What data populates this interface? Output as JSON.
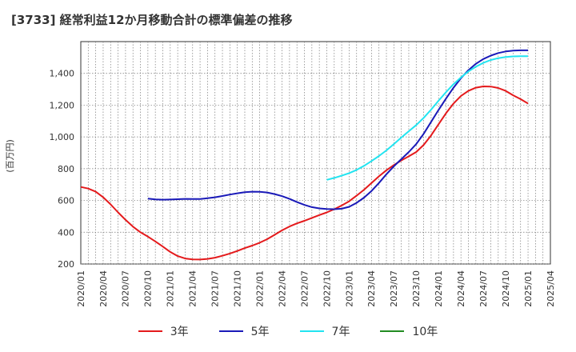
{
  "chart_data": {
    "type": "line",
    "title": "[3733]  経常利益12か月移動合計の標準偏差の推移",
    "ylabel": "(百万円)",
    "xlabel": "",
    "ylim": [
      200,
      1600
    ],
    "yticks": [
      "200",
      "400",
      "600",
      "800",
      "1,000",
      "1,200",
      "1,400"
    ],
    "ytick_values": [
      200,
      400,
      600,
      800,
      1000,
      1200,
      1400
    ],
    "x_start": "2020/01",
    "x_end": "2025/04",
    "xticks": [
      "2020/01",
      "2020/04",
      "2020/07",
      "2020/10",
      "2021/01",
      "2021/04",
      "2021/07",
      "2021/10",
      "2022/01",
      "2022/04",
      "2022/07",
      "2022/10",
      "2023/01",
      "2023/04",
      "2023/07",
      "2023/10",
      "2024/01",
      "2024/04",
      "2024/07",
      "2024/10",
      "2025/01",
      "2025/04"
    ],
    "grid": true,
    "legend_position": "bottom",
    "series": [
      {
        "name": "3年",
        "color": "#e41a1c",
        "points": [
          [
            "2020/01",
            685
          ],
          [
            "2020/02",
            675
          ],
          [
            "2020/03",
            655
          ],
          [
            "2020/04",
            620
          ],
          [
            "2020/05",
            575
          ],
          [
            "2020/06",
            525
          ],
          [
            "2020/07",
            478
          ],
          [
            "2020/08",
            435
          ],
          [
            "2020/09",
            400
          ],
          [
            "2020/10",
            372
          ],
          [
            "2020/11",
            342
          ],
          [
            "2020/12",
            310
          ],
          [
            "2021/01",
            276
          ],
          [
            "2021/02",
            250
          ],
          [
            "2021/03",
            235
          ],
          [
            "2021/04",
            229
          ],
          [
            "2021/05",
            228
          ],
          [
            "2021/06",
            232
          ],
          [
            "2021/07",
            240
          ],
          [
            "2021/08",
            252
          ],
          [
            "2021/09",
            266
          ],
          [
            "2021/10",
            282
          ],
          [
            "2021/11",
            300
          ],
          [
            "2021/12",
            316
          ],
          [
            "2022/01",
            334
          ],
          [
            "2022/02",
            356
          ],
          [
            "2022/03",
            384
          ],
          [
            "2022/04",
            412
          ],
          [
            "2022/05",
            436
          ],
          [
            "2022/06",
            456
          ],
          [
            "2022/07",
            472
          ],
          [
            "2022/08",
            490
          ],
          [
            "2022/09",
            508
          ],
          [
            "2022/10",
            525
          ],
          [
            "2022/11",
            545
          ],
          [
            "2022/12",
            568
          ],
          [
            "2023/01",
            595
          ],
          [
            "2023/02",
            630
          ],
          [
            "2023/03",
            668
          ],
          [
            "2023/04",
            710
          ],
          [
            "2023/05",
            752
          ],
          [
            "2023/06",
            790
          ],
          [
            "2023/07",
            823
          ],
          [
            "2023/08",
            852
          ],
          [
            "2023/09",
            878
          ],
          [
            "2023/10",
            905
          ],
          [
            "2023/11",
            950
          ],
          [
            "2023/12",
            1010
          ],
          [
            "2024/01",
            1080
          ],
          [
            "2024/02",
            1150
          ],
          [
            "2024/03",
            1210
          ],
          [
            "2024/04",
            1258
          ],
          [
            "2024/05",
            1290
          ],
          [
            "2024/06",
            1310
          ],
          [
            "2024/07",
            1318
          ],
          [
            "2024/08",
            1317
          ],
          [
            "2024/09",
            1308
          ],
          [
            "2024/10",
            1290
          ],
          [
            "2024/11",
            1262
          ],
          [
            "2024/12",
            1238
          ],
          [
            "2025/01",
            1210
          ]
        ]
      },
      {
        "name": "5年",
        "color": "#1a1ab8",
        "points": [
          [
            "2020/10",
            612
          ],
          [
            "2020/11",
            607
          ],
          [
            "2020/12",
            605
          ],
          [
            "2021/01",
            606
          ],
          [
            "2021/02",
            608
          ],
          [
            "2021/03",
            610
          ],
          [
            "2021/04",
            609
          ],
          [
            "2021/05",
            609
          ],
          [
            "2021/06",
            614
          ],
          [
            "2021/07",
            620
          ],
          [
            "2021/08",
            628
          ],
          [
            "2021/09",
            637
          ],
          [
            "2021/10",
            645
          ],
          [
            "2021/11",
            652
          ],
          [
            "2021/12",
            655
          ],
          [
            "2022/01",
            654
          ],
          [
            "2022/02",
            650
          ],
          [
            "2022/03",
            640
          ],
          [
            "2022/04",
            627
          ],
          [
            "2022/05",
            610
          ],
          [
            "2022/06",
            590
          ],
          [
            "2022/07",
            572
          ],
          [
            "2022/08",
            558
          ],
          [
            "2022/09",
            550
          ],
          [
            "2022/10",
            546
          ],
          [
            "2022/11",
            545
          ],
          [
            "2022/12",
            548
          ],
          [
            "2023/01",
            560
          ],
          [
            "2023/02",
            585
          ],
          [
            "2023/03",
            618
          ],
          [
            "2023/04",
            660
          ],
          [
            "2023/05",
            710
          ],
          [
            "2023/06",
            765
          ],
          [
            "2023/07",
            815
          ],
          [
            "2023/08",
            860
          ],
          [
            "2023/09",
            905
          ],
          [
            "2023/10",
            955
          ],
          [
            "2023/11",
            1020
          ],
          [
            "2023/12",
            1095
          ],
          [
            "2024/01",
            1170
          ],
          [
            "2024/02",
            1242
          ],
          [
            "2024/03",
            1310
          ],
          [
            "2024/04",
            1370
          ],
          [
            "2024/05",
            1420
          ],
          [
            "2024/06",
            1460
          ],
          [
            "2024/07",
            1490
          ],
          [
            "2024/08",
            1512
          ],
          [
            "2024/09",
            1528
          ],
          [
            "2024/10",
            1538
          ],
          [
            "2024/11",
            1543
          ],
          [
            "2024/12",
            1545
          ],
          [
            "2025/01",
            1545
          ]
        ]
      },
      {
        "name": "7年",
        "color": "#22e4f0",
        "points": [
          [
            "2022/10",
            730
          ],
          [
            "2022/11",
            742
          ],
          [
            "2022/12",
            756
          ],
          [
            "2023/01",
            772
          ],
          [
            "2023/02",
            792
          ],
          [
            "2023/03",
            818
          ],
          [
            "2023/04",
            848
          ],
          [
            "2023/05",
            880
          ],
          [
            "2023/06",
            915
          ],
          [
            "2023/07",
            955
          ],
          [
            "2023/08",
            996
          ],
          [
            "2023/09",
            1036
          ],
          [
            "2023/10",
            1075
          ],
          [
            "2023/11",
            1120
          ],
          [
            "2023/12",
            1172
          ],
          [
            "2024/01",
            1228
          ],
          [
            "2024/02",
            1282
          ],
          [
            "2024/03",
            1332
          ],
          [
            "2024/04",
            1375
          ],
          [
            "2024/05",
            1412
          ],
          [
            "2024/06",
            1442
          ],
          [
            "2024/07",
            1466
          ],
          [
            "2024/08",
            1484
          ],
          [
            "2024/09",
            1496
          ],
          [
            "2024/10",
            1503
          ],
          [
            "2024/11",
            1507
          ],
          [
            "2024/12",
            1508
          ],
          [
            "2025/01",
            1508
          ]
        ]
      },
      {
        "name": "10年",
        "color": "#228b22",
        "points": []
      }
    ]
  }
}
